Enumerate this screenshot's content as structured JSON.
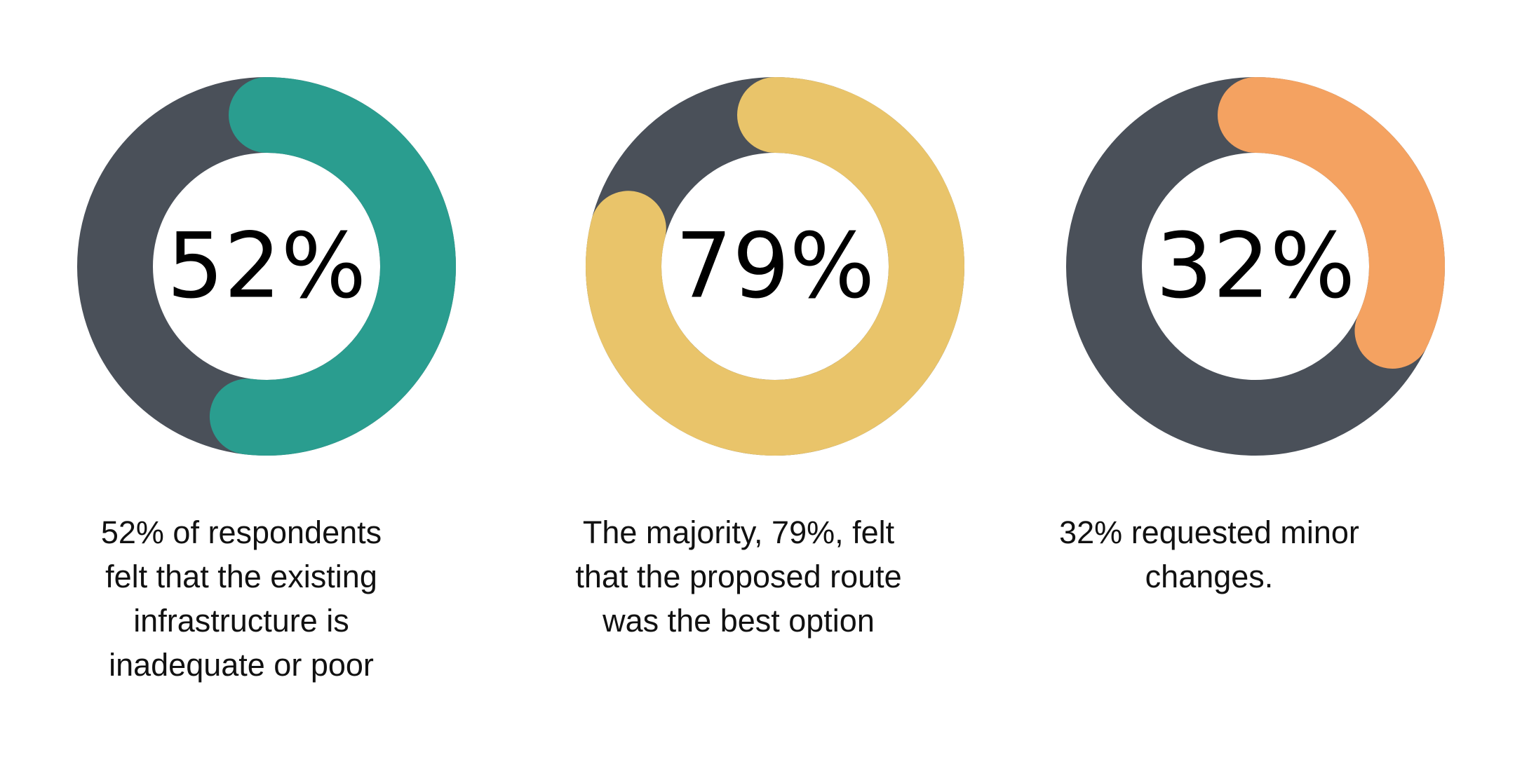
{
  "chart_data": [
    {
      "type": "pie",
      "value": 52,
      "value_label": "52%",
      "caption": "52% of respondents felt that the existing infrastructure is inadequate or poor",
      "colors": {
        "filled": "#2A9D8F",
        "remaining": "#4A5059",
        "text": "#000000"
      }
    },
    {
      "type": "pie",
      "value": 79,
      "value_label": "79%",
      "caption": "The majority, 79%, felt that the proposed route was the best option",
      "colors": {
        "filled": "#E9C46A",
        "remaining": "#4A5059",
        "text": "#000000"
      }
    },
    {
      "type": "pie",
      "value": 32,
      "value_label": "32%",
      "caption": "32% requested minor changes.",
      "colors": {
        "filled": "#F4A261",
        "remaining": "#4A5059",
        "text": "#000000"
      }
    }
  ]
}
